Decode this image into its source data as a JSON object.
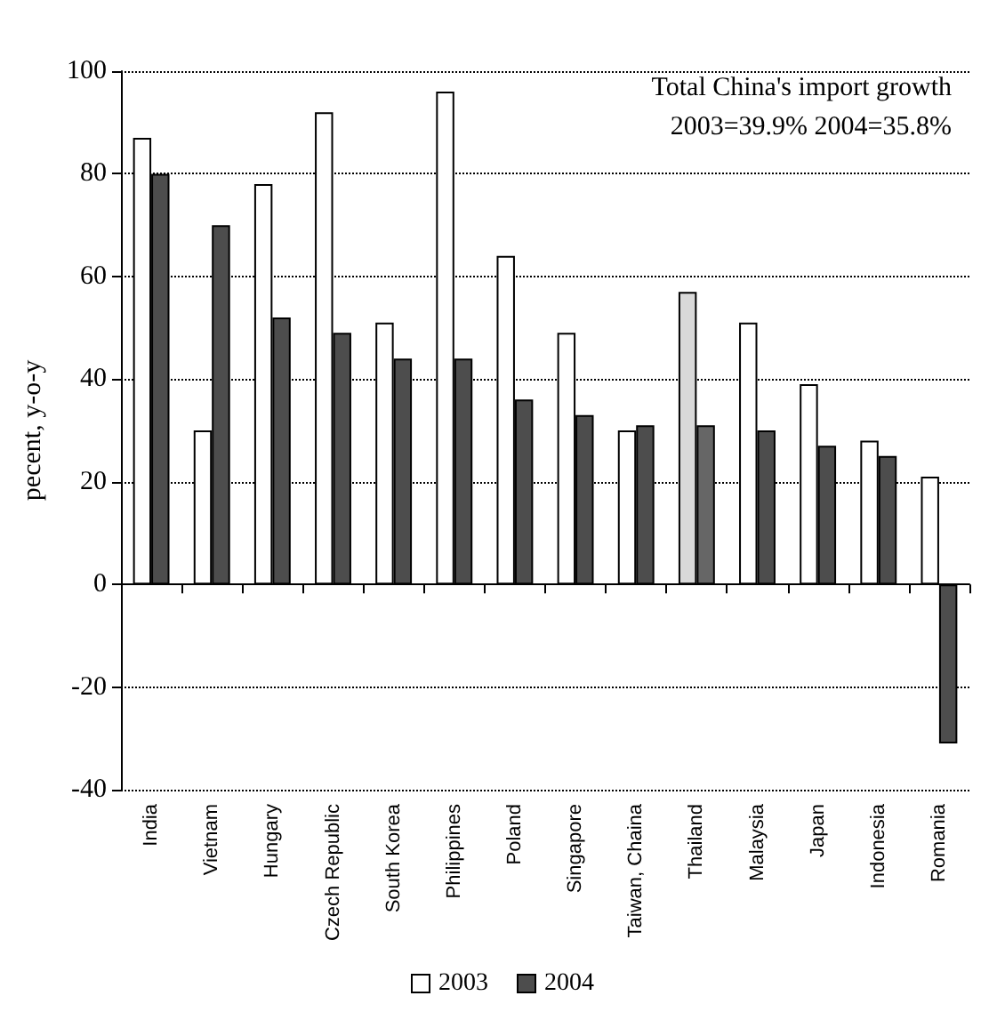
{
  "chart_data": {
    "type": "bar",
    "ylabel": "pecent, y-o-y",
    "categories": [
      "India",
      "Vietnam",
      "Hungary",
      "Czech Republic",
      "South Korea",
      "Philippines",
      "Poland",
      "Singapore",
      "Taiwan, Chaina",
      "Thailand",
      "Malaysia",
      "Japan",
      "Indonesia",
      "Romania"
    ],
    "series": [
      {
        "name": "2003",
        "color": "#ffffff",
        "colors": [
          "#ffffff",
          "#ffffff",
          "#ffffff",
          "#ffffff",
          "#ffffff",
          "#ffffff",
          "#ffffff",
          "#ffffff",
          "#ffffff",
          "#d9d9d9",
          "#ffffff",
          "#ffffff",
          "#ffffff",
          "#ffffff"
        ],
        "values": [
          87,
          30,
          78,
          92,
          51,
          96,
          64,
          49,
          30,
          57,
          51,
          39,
          28,
          21
        ]
      },
      {
        "name": "2004",
        "color": "#4d4d4d",
        "colors": [
          "#4d4d4d",
          "#4d4d4d",
          "#4d4d4d",
          "#4d4d4d",
          "#4d4d4d",
          "#4d4d4d",
          "#4d4d4d",
          "#4d4d4d",
          "#4d4d4d",
          "#666666",
          "#4d4d4d",
          "#4d4d4d",
          "#4d4d4d",
          "#4d4d4d"
        ],
        "values": [
          80,
          70,
          52,
          49,
          44,
          44,
          36,
          33,
          31,
          31,
          30,
          27,
          25,
          -31
        ]
      }
    ],
    "annotations": [
      "Total China's import growth",
      "2003=39.9% 2004=35.8%"
    ],
    "ylim": [
      -40,
      100
    ],
    "yticks": [
      -40,
      -20,
      0,
      20,
      40,
      60,
      80,
      100
    ],
    "grid": "y",
    "legend": "bottom"
  }
}
